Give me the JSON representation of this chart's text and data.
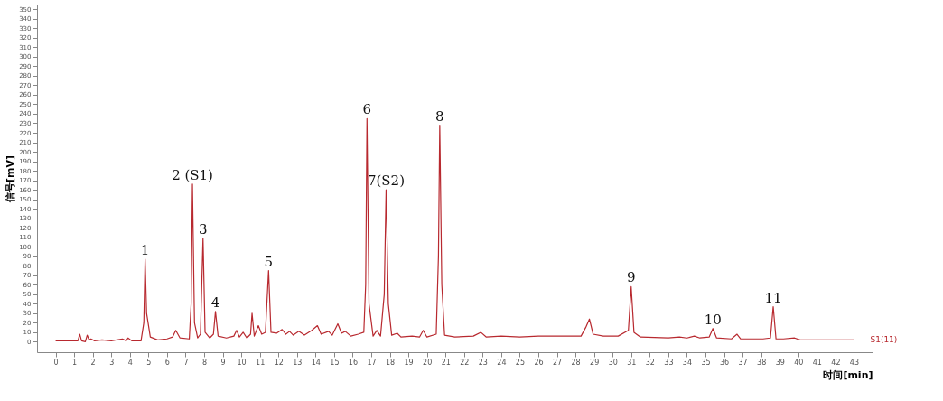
{
  "chart_data": {
    "type": "line",
    "xlabel": "时间[min]",
    "ylabel": "信号[mV]",
    "xlim": [
      -1,
      44
    ],
    "ylim": [
      -11,
      355
    ],
    "xticks": [
      0,
      1,
      2,
      3,
      4,
      5,
      6,
      7,
      8,
      9,
      10,
      11,
      12,
      13,
      14,
      15,
      16,
      17,
      18,
      19,
      20,
      21,
      22,
      23,
      24,
      25,
      26,
      27,
      28,
      29,
      30,
      31,
      32,
      33,
      34,
      35,
      36,
      37,
      38,
      39,
      40,
      41,
      42,
      43
    ],
    "yticks": [
      0,
      10,
      20,
      30,
      40,
      50,
      60,
      70,
      80,
      90,
      100,
      110,
      120,
      130,
      140,
      150,
      160,
      170,
      180,
      190,
      200,
      210,
      220,
      230,
      240,
      250,
      260,
      270,
      280,
      290,
      300,
      310,
      320,
      330,
      340,
      350
    ],
    "grid": false,
    "legend": false,
    "marker": "none",
    "line_style": "solid",
    "series": [
      {
        "name": "S1(11)",
        "color": "#b8292f",
        "x": [
          0,
          1.2,
          1.3,
          1.4,
          1.6,
          1.7,
          1.8,
          1.9,
          2.1,
          2.5,
          3,
          3.6,
          3.8,
          3.9,
          4.1,
          4.6,
          4.75,
          4.82,
          4.9,
          5.1,
          5.5,
          6.0,
          6.3,
          6.47,
          6.7,
          7.2,
          7.3,
          7.37,
          7.48,
          7.65,
          7.8,
          7.94,
          8.05,
          8.3,
          8.5,
          8.61,
          8.75,
          9.2,
          9.6,
          9.75,
          9.9,
          10.1,
          10.3,
          10.5,
          10.58,
          10.7,
          10.92,
          11.1,
          11.3,
          11.47,
          11.6,
          11.9,
          12.2,
          12.4,
          12.6,
          12.8,
          13.1,
          13.4,
          13.8,
          14.1,
          14.3,
          14.7,
          14.9,
          15.2,
          15.4,
          15.6,
          15.9,
          16.3,
          16.6,
          16.7,
          16.77,
          16.88,
          17.1,
          17.3,
          17.5,
          17.7,
          17.8,
          17.92,
          18.1,
          18.4,
          18.6,
          19.2,
          19.6,
          19.8,
          20.0,
          20.5,
          20.62,
          20.69,
          20.8,
          20.95,
          21.5,
          22.5,
          22.9,
          23.2,
          24,
          25,
          26,
          27,
          28.3,
          28.55,
          28.75,
          28.95,
          29.5,
          30.3,
          30.85,
          31.0,
          31.15,
          31.5,
          33,
          33.6,
          34,
          34.4,
          34.7,
          35.2,
          35.4,
          35.6,
          36.4,
          36.7,
          36.9,
          38.1,
          38.5,
          38.65,
          38.8,
          39.2,
          39.8,
          40.1,
          43
        ],
        "values": [
          1,
          1,
          8,
          1,
          0,
          7,
          2,
          3,
          1,
          2,
          1,
          3,
          1,
          4,
          1,
          1,
          20,
          87,
          30,
          5,
          2,
          3,
          5,
          12,
          4,
          3,
          40,
          166,
          20,
          4,
          8,
          109,
          10,
          4,
          8,
          32,
          6,
          4,
          6,
          12,
          5,
          10,
          4,
          8,
          30,
          6,
          17,
          8,
          10,
          75,
          10,
          9,
          13,
          8,
          11,
          7,
          11,
          7,
          12,
          17,
          8,
          11,
          7,
          19,
          9,
          11,
          6,
          8,
          10,
          60,
          235,
          40,
          6,
          12,
          6,
          50,
          160,
          40,
          7,
          9,
          5,
          6,
          5,
          12,
          5,
          8,
          90,
          228,
          60,
          7,
          5,
          6,
          10,
          5,
          6,
          5,
          6,
          6,
          6,
          15,
          24,
          8,
          6,
          6,
          12,
          58,
          10,
          5,
          4,
          5,
          4,
          6,
          4,
          5,
          14,
          4,
          3,
          8,
          3,
          3,
          4,
          37,
          3,
          3,
          4,
          2,
          2
        ]
      }
    ],
    "annotations": [
      {
        "text": "1",
        "x": 4.82,
        "y": 87
      },
      {
        "text": "2 (S1)",
        "x": 7.37,
        "y": 166
      },
      {
        "text": "3",
        "x": 7.94,
        "y": 109
      },
      {
        "text": "4",
        "x": 8.61,
        "y": 32
      },
      {
        "text": "5",
        "x": 11.47,
        "y": 75
      },
      {
        "text": "6",
        "x": 16.77,
        "y": 235
      },
      {
        "text": "7(S2)",
        "x": 17.8,
        "y": 160
      },
      {
        "text": "8",
        "x": 20.69,
        "y": 228
      },
      {
        "text": "9",
        "x": 31.0,
        "y": 58
      },
      {
        "text": "10",
        "x": 35.4,
        "y": 14
      },
      {
        "text": "11",
        "x": 38.65,
        "y": 37
      }
    ]
  }
}
